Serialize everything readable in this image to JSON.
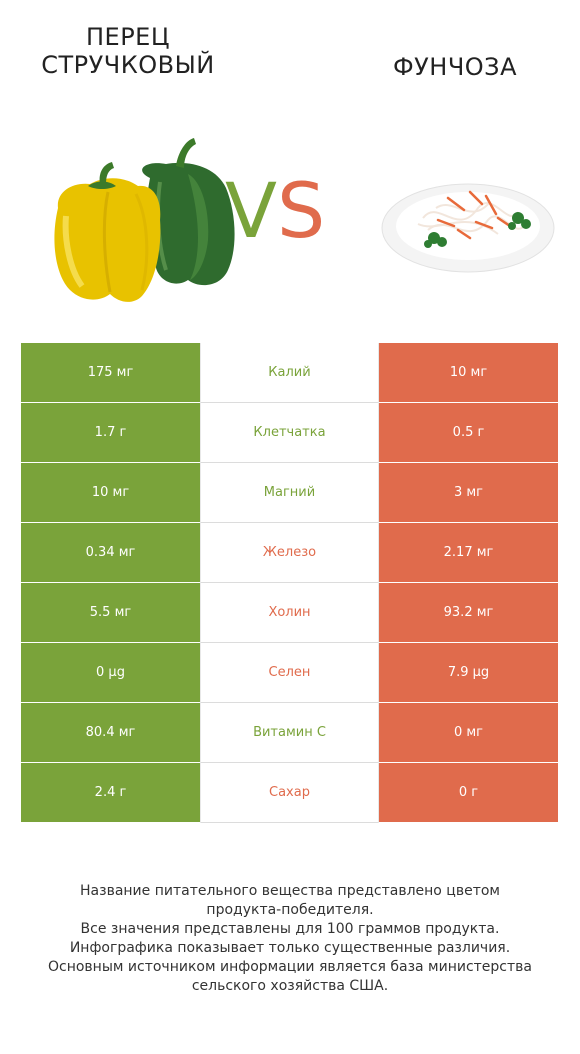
{
  "header": {
    "left_title_line1": "ПЕРЕЦ",
    "left_title_line2": "СТРУЧКОВЫЙ",
    "right_title": "ФУНЧОЗА",
    "vs_v": "V",
    "vs_s": "S"
  },
  "colors": {
    "left_product": "#7aa33a",
    "right_product": "#e06b4c"
  },
  "rows": [
    {
      "left": "175 мг",
      "nutrient": "Калий",
      "right": "10 мг",
      "winner": "left"
    },
    {
      "left": "1.7 г",
      "nutrient": "Клетчатка",
      "right": "0.5 г",
      "winner": "left"
    },
    {
      "left": "10 мг",
      "nutrient": "Магний",
      "right": "3 мг",
      "winner": "left"
    },
    {
      "left": "0.34 мг",
      "nutrient": "Железо",
      "right": "2.17 мг",
      "winner": "right"
    },
    {
      "left": "5.5 мг",
      "nutrient": "Холин",
      "right": "93.2 мг",
      "winner": "right"
    },
    {
      "left": "0 µg",
      "nutrient": "Селен",
      "right": "7.9 µg",
      "winner": "right"
    },
    {
      "left": "80.4 мг",
      "nutrient": "Витамин C",
      "right": "0 мг",
      "winner": "left"
    },
    {
      "left": "2.4 г",
      "nutrient": "Сахар",
      "right": "0 г",
      "winner": "right"
    }
  ],
  "footer": {
    "line1": "Название питательного вещества представлено цветом",
    "line2": "продукта-победителя.",
    "line3": "Все значения представлены для 100 граммов продукта.",
    "line4": "Инфографика показывает только существенные различия.",
    "line5": "Основным источником информации является база министерства",
    "line6": "сельского хозяйства США."
  }
}
